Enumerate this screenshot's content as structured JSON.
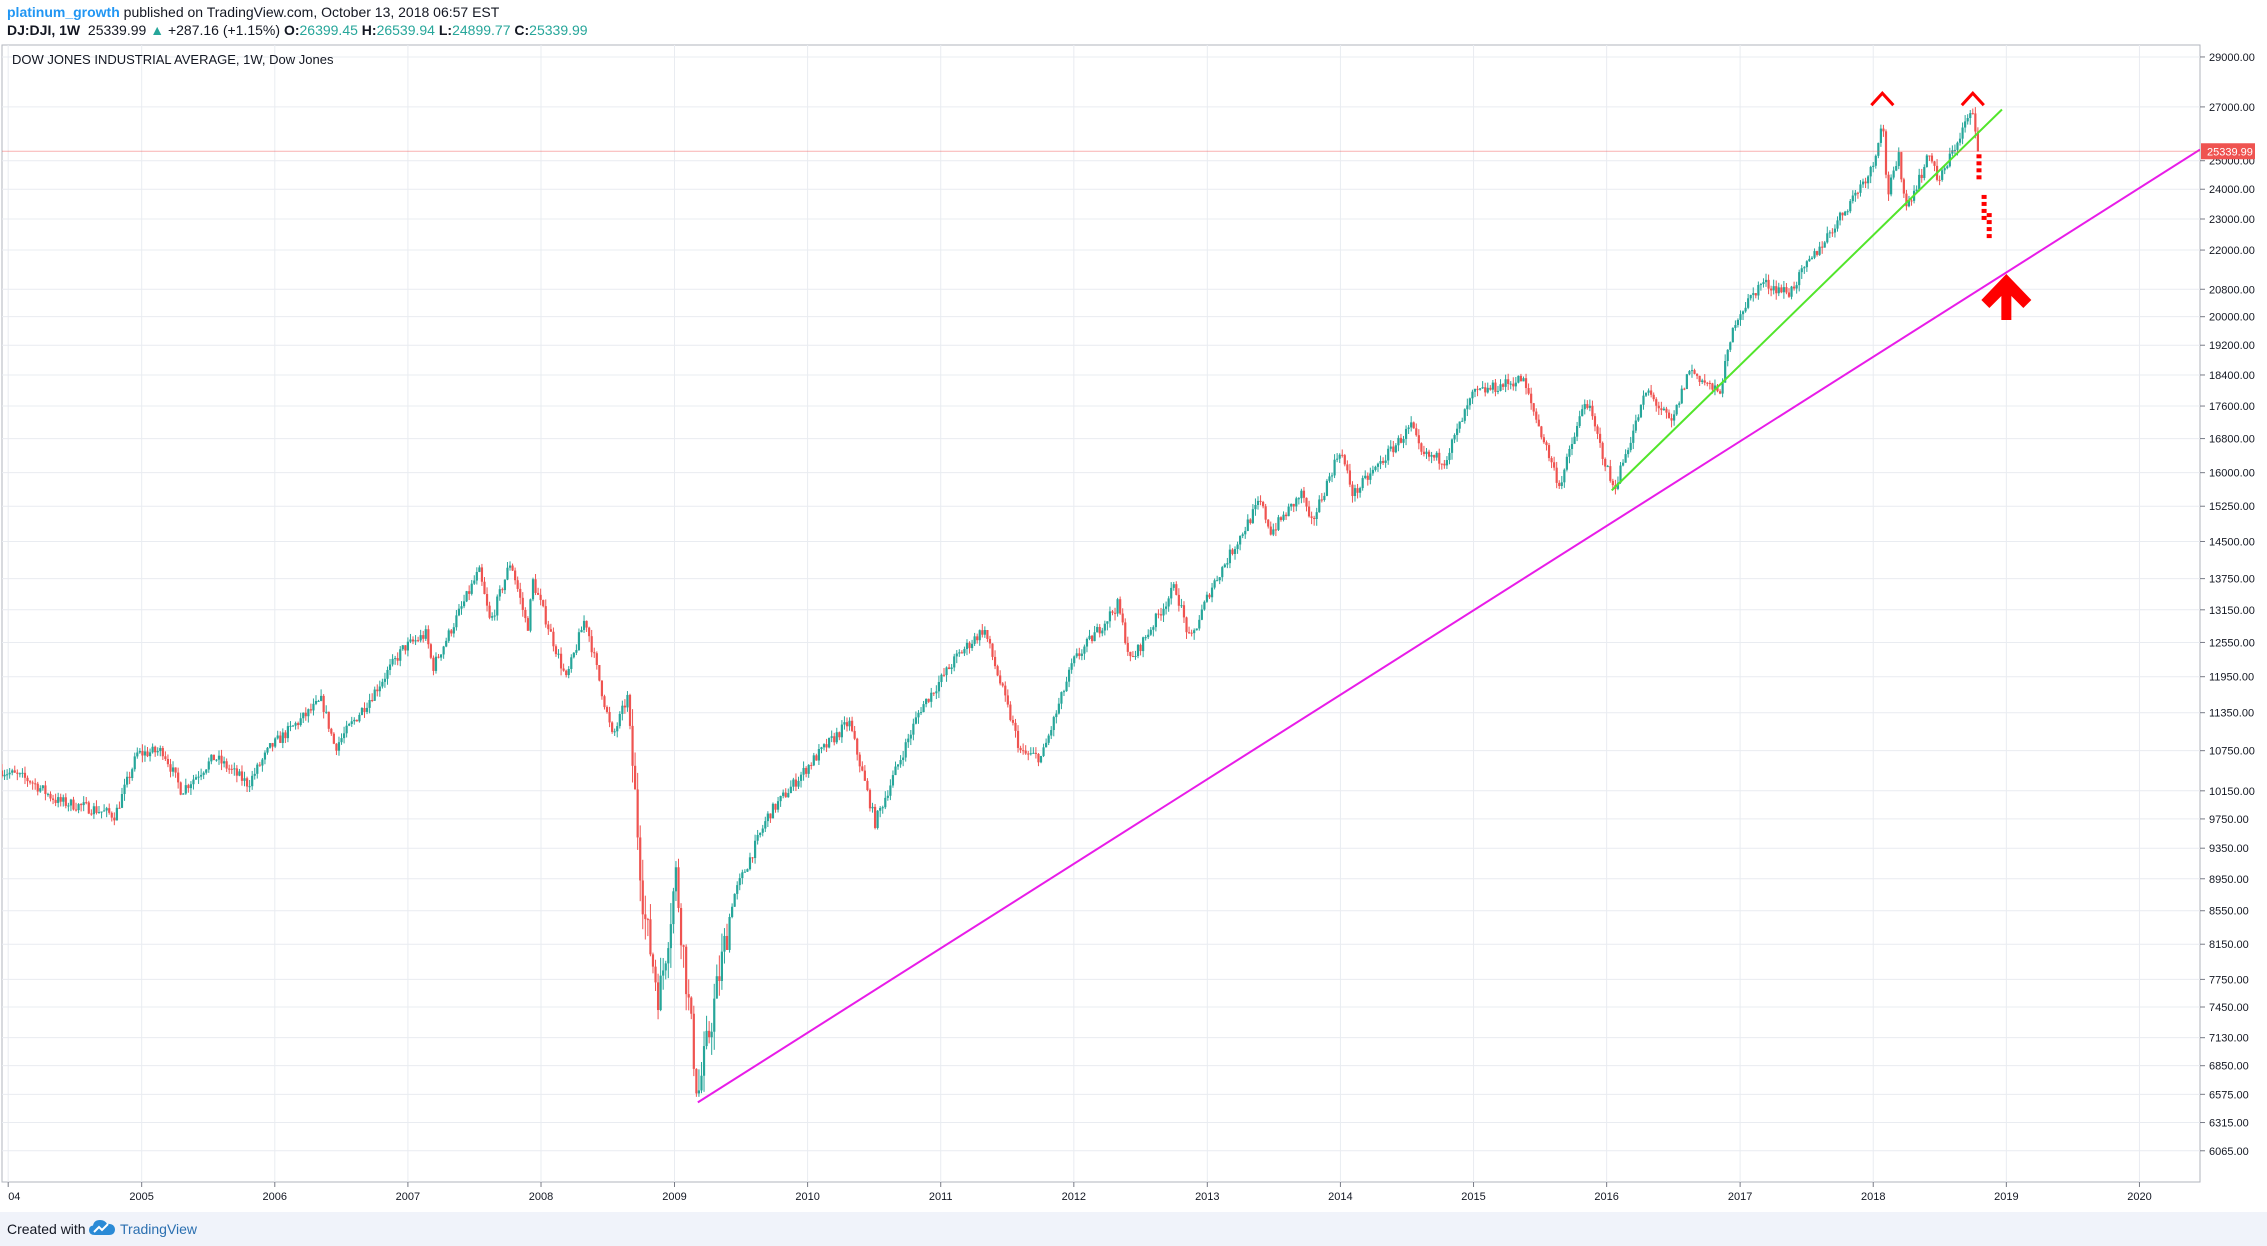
{
  "header": {
    "publisher": "platinum_growth",
    "published_text": "published on TradingView.com, October 13, 2018 06:57 EST",
    "symbol": "DJ:DJI, 1W",
    "last": "25339.99",
    "change_arrow": "▲",
    "change": "+287.16 (+1.15%)",
    "open_label": "O:",
    "open": "26399.45",
    "high_label": "H:",
    "high": "26539.94",
    "low_label": "L:",
    "low": "24899.77",
    "close_label": "C:",
    "close": "25339.99"
  },
  "footer": {
    "created_with": "Created with",
    "brand": "TradingView"
  },
  "chart_data": {
    "type": "candlestick",
    "title": "DOW JONES INDUSTRIAL AVERAGE, 1W, Dow Jones",
    "log_scale": true,
    "ylim": [
      5800,
      29500
    ],
    "xlim": [
      "2003-12-15",
      "2020-06-15"
    ],
    "y_ticks": [
      29000,
      27000,
      25000,
      24000,
      23000,
      22000,
      20800,
      20000,
      19200,
      18400,
      17600,
      16800,
      16000,
      15250,
      14500,
      13750,
      13150,
      12550,
      11950,
      11350,
      10750,
      10150,
      9750,
      9350,
      8950,
      8550,
      8150,
      7750,
      7450,
      7130,
      6850,
      6575,
      6315,
      6065
    ],
    "y_tick_labels": [
      "29000.00",
      "27000.00",
      "25000.00",
      "24000.00",
      "23000.00",
      "22000.00",
      "20800.00",
      "20000.00",
      "19200.00",
      "18400.00",
      "17600.00",
      "16800.00",
      "16000.00",
      "15250.00",
      "14500.00",
      "13750.00",
      "13150.00",
      "12550.00",
      "11950.00",
      "11350.00",
      "10750.00",
      "10150.00",
      "9750.00",
      "9350.00",
      "8950.00",
      "8550.00",
      "8150.00",
      "7750.00",
      "7450.00",
      "7130.00",
      "6850.00",
      "6575.00",
      "6315.00",
      "6065.00"
    ],
    "x_ticks": [
      {
        "label": "04",
        "date": "2004-01-01"
      },
      {
        "label": "2005",
        "date": "2005-01-01"
      },
      {
        "label": "2006",
        "date": "2006-01-01"
      },
      {
        "label": "2007",
        "date": "2007-01-01"
      },
      {
        "label": "2008",
        "date": "2008-01-01"
      },
      {
        "label": "2009",
        "date": "2009-01-01"
      },
      {
        "label": "2010",
        "date": "2010-01-01"
      },
      {
        "label": "2011",
        "date": "2011-01-01"
      },
      {
        "label": "2012",
        "date": "2012-01-01"
      },
      {
        "label": "2013",
        "date": "2013-01-01"
      },
      {
        "label": "2014",
        "date": "2014-01-01"
      },
      {
        "label": "2015",
        "date": "2015-01-01"
      },
      {
        "label": "2016",
        "date": "2016-01-01"
      },
      {
        "label": "2017",
        "date": "2017-01-01"
      },
      {
        "label": "2018",
        "date": "2018-01-01"
      },
      {
        "label": "2019",
        "date": "2019-01-01"
      },
      {
        "label": "2020",
        "date": "2020-01-01"
      }
    ],
    "price_path": [
      [
        "2003-12-15",
        10450
      ],
      [
        "2004-03-01",
        10300
      ],
      [
        "2004-05-15",
        10000
      ],
      [
        "2004-08-15",
        9900
      ],
      [
        "2004-10-20",
        9800
      ],
      [
        "2004-12-20",
        10700
      ],
      [
        "2005-03-01",
        10750
      ],
      [
        "2005-04-20",
        10150
      ],
      [
        "2005-07-20",
        10650
      ],
      [
        "2005-10-20",
        10250
      ],
      [
        "2005-12-20",
        10800
      ],
      [
        "2006-05-10",
        11550
      ],
      [
        "2006-06-15",
        10800
      ],
      [
        "2006-09-15",
        11550
      ],
      [
        "2006-12-20",
        12450
      ],
      [
        "2007-02-20",
        12700
      ],
      [
        "2007-03-10",
        12100
      ],
      [
        "2007-07-15",
        13900
      ],
      [
        "2007-08-15",
        12900
      ],
      [
        "2007-10-10",
        14100
      ],
      [
        "2007-11-25",
        12800
      ],
      [
        "2007-12-10",
        13700
      ],
      [
        "2008-03-10",
        11900
      ],
      [
        "2008-05-01",
        13000
      ],
      [
        "2008-07-15",
        10950
      ],
      [
        "2008-08-25",
        11600
      ],
      [
        "2008-10-10",
        8500
      ],
      [
        "2008-11-20",
        7550
      ],
      [
        "2009-01-05",
        9000
      ],
      [
        "2009-03-06",
        6550
      ],
      [
        "2009-06-10",
        8700
      ],
      [
        "2009-09-15",
        9800
      ],
      [
        "2010-01-15",
        10600
      ],
      [
        "2010-04-25",
        11200
      ],
      [
        "2010-07-05",
        9700
      ],
      [
        "2010-11-05",
        11400
      ],
      [
        "2011-02-15",
        12300
      ],
      [
        "2011-04-30",
        12800
      ],
      [
        "2011-08-10",
        10700
      ],
      [
        "2011-10-05",
        10650
      ],
      [
        "2011-12-30",
        12200
      ],
      [
        "2012-05-01",
        13250
      ],
      [
        "2012-06-05",
        12200
      ],
      [
        "2012-10-05",
        13600
      ],
      [
        "2012-11-15",
        12550
      ],
      [
        "2013-01-10",
        13550
      ],
      [
        "2013-05-25",
        15350
      ],
      [
        "2013-06-25",
        14700
      ],
      [
        "2013-09-20",
        15550
      ],
      [
        "2013-10-10",
        14800
      ],
      [
        "2013-12-31",
        16550
      ],
      [
        "2014-02-05",
        15500
      ],
      [
        "2014-07-15",
        17100
      ],
      [
        "2014-08-10",
        16400
      ],
      [
        "2014-10-15",
        16300
      ],
      [
        "2014-12-31",
        17900
      ],
      [
        "2015-05-15",
        18300
      ],
      [
        "2015-08-25",
        15700
      ],
      [
        "2015-11-05",
        17800
      ],
      [
        "2016-01-20",
        15600
      ],
      [
        "2016-04-20",
        18000
      ],
      [
        "2016-06-27",
        17150
      ],
      [
        "2016-08-15",
        18550
      ],
      [
        "2016-11-04",
        17900
      ],
      [
        "2016-12-20",
        19950
      ],
      [
        "2017-03-01",
        21000
      ],
      [
        "2017-05-15",
        20700
      ],
      [
        "2017-08-05",
        22050
      ],
      [
        "2017-10-15",
        23300
      ],
      [
        "2017-12-31",
        24800
      ],
      [
        "2018-01-26",
        26600
      ],
      [
        "2018-02-09",
        23800
      ],
      [
        "2018-03-12",
        25100
      ],
      [
        "2018-04-02",
        23400
      ],
      [
        "2018-06-08",
        25300
      ],
      [
        "2018-06-29",
        24200
      ],
      [
        "2018-09-21",
        26700
      ],
      [
        "2018-10-03",
        26650
      ],
      [
        "2018-10-12",
        25339.99
      ]
    ],
    "last_price": 25339.99,
    "last_price_label": "25339.99",
    "drawings": {
      "magenta_trendline": {
        "color": "#e81ce8",
        "points": [
          [
            "2009-03-06",
            6500
          ],
          [
            "2020-06-15",
            25400
          ]
        ]
      },
      "green_trendline": {
        "color": "#52e52b",
        "points": [
          [
            "2016-01-15",
            15600
          ],
          [
            "2018-12-20",
            26900
          ]
        ]
      },
      "peak_markers": {
        "color": "#ff0000",
        "points": [
          [
            "2018-01-26",
            27300
          ],
          [
            "2018-10-01",
            27300
          ]
        ]
      },
      "dotted_forecast": {
        "color": "#ff0000",
        "points": [
          [
            "2018-10-18",
            24800
          ],
          [
            "2018-11-01",
            23400
          ],
          [
            "2018-11-15",
            22800
          ]
        ]
      },
      "up_arrow": {
        "color": "#ff0000",
        "point": [
          "2019-01-01",
          20600
        ]
      }
    },
    "colors": {
      "up": "#26a69a",
      "down": "#ef5350",
      "last_price_line": "#ef5350",
      "grid": "#e9ecf1",
      "axis_text": "#131722"
    },
    "grid": true
  }
}
